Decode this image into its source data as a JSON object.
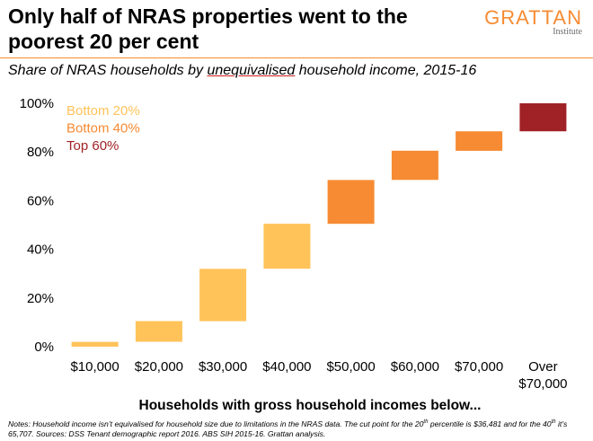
{
  "header": {
    "title": "Only half of NRAS properties went to the poorest 20 per cent",
    "logo_main": "GRATTAN",
    "logo_sub": "Institute"
  },
  "subtitle": {
    "before": "Share of NRAS households by ",
    "underlined": "unequivalised",
    "after": " household income, 2015-16"
  },
  "chart_data": {
    "type": "bar",
    "subtype": "waterfall",
    "title": "Share of NRAS households by unequivalised household income, 2015-16",
    "xlabel": "Households with gross household incomes below...",
    "ylabel": "",
    "ylim": [
      0,
      100
    ],
    "ytick_values": [
      0,
      20,
      40,
      60,
      80,
      100
    ],
    "ytick_labels": [
      "0%",
      "20%",
      "40%",
      "60%",
      "80%",
      "100%"
    ],
    "categories": [
      "$10,000",
      "$20,000",
      "$30,000",
      "$40,000",
      "$50,000",
      "$60,000",
      "$70,000",
      "Over $70,000"
    ],
    "category_lines": [
      [
        "$10,000"
      ],
      [
        "$20,000"
      ],
      [
        "$30,000"
      ],
      [
        "$40,000"
      ],
      [
        "$50,000"
      ],
      [
        "$60,000"
      ],
      [
        "$70,000"
      ],
      [
        "Over",
        "$70,000"
      ]
    ],
    "bars": [
      {
        "start": 0,
        "end": 2,
        "group": 0
      },
      {
        "start": 2,
        "end": 10.5,
        "group": 0
      },
      {
        "start": 10.5,
        "end": 32,
        "group": 0
      },
      {
        "start": 32,
        "end": 50.5,
        "group": 0
      },
      {
        "start": 50.5,
        "end": 68.5,
        "group": 1
      },
      {
        "start": 68.5,
        "end": 80.5,
        "group": 1
      },
      {
        "start": 80.5,
        "end": 88.5,
        "group": 1
      },
      {
        "start": 88.5,
        "end": 100,
        "group": 2
      }
    ],
    "legend": [
      {
        "label": "Bottom 20%",
        "color": "#FFC35A"
      },
      {
        "label": "Bottom 40%",
        "color": "#F68B33"
      },
      {
        "label": "Top 60%",
        "color": "#A02226"
      }
    ],
    "grid": false
  },
  "notes": {
    "part1": "Notes: Household income isn’t equivalised for household size due to limitations in the NRAS data. The cut point for the 20",
    "sup1": "th",
    "part2": " percentile is $36,481 and for the 40",
    "sup2": "th",
    "part3": " it’s 65,707. Sources: DSS Tenant demographic report 2016. ABS SIH 2015-16. Grattan analysis."
  }
}
